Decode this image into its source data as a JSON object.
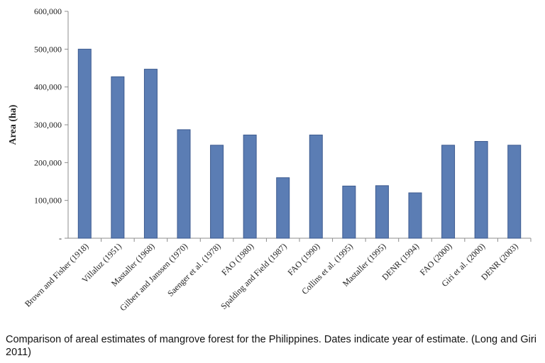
{
  "chart_data": {
    "type": "bar",
    "ylabel": "Area (ha)",
    "xlabel": "",
    "ylim": [
      0,
      600000
    ],
    "yticks": [
      0,
      100000,
      200000,
      300000,
      400000,
      500000,
      600000
    ],
    "ytick_labels": [
      "-",
      "100,000",
      "200,000",
      "300,000",
      "400,000",
      "500,000",
      "600,000"
    ],
    "grid": false,
    "categories": [
      "Brown and Fisher (1918)",
      "Villaluz (1951)",
      "Mastaller (1968)",
      "Gilbert and Janssen (1970)",
      "Saenger et al. (1978)",
      "FAO (1980)",
      "Spalding and Field (1987)",
      "FAO (1990)",
      "Collins et al. (1995)",
      "Mastaller (1995)",
      "DENR (1994)",
      "FAO (2000)",
      "Giri et al. (2000)",
      "DENR (2003)"
    ],
    "values": [
      500000,
      427000,
      447000,
      287000,
      246000,
      273000,
      160000,
      273000,
      138000,
      139000,
      120000,
      246000,
      256000,
      246000
    ],
    "bar_color": "#5b7db4",
    "bar_edge_color": "#3c5a8f"
  },
  "caption": "Comparison of areal estimates of mangrove forest for the Philippines. Dates indicate year of estimate. (Long and Giri 2011)"
}
